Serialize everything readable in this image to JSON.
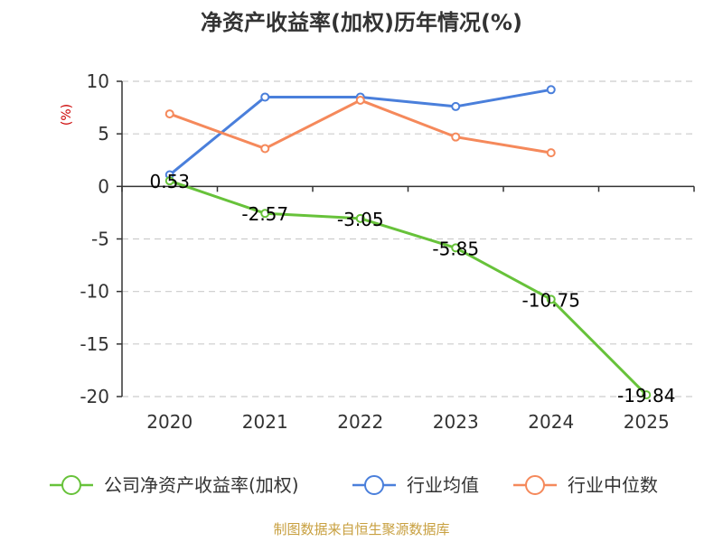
{
  "title": "净资产收益率(加权)历年情况(%)",
  "source": "制图数据来自恒生聚源数据库",
  "colors": {
    "company": "#67c23a",
    "industry_avg": "#4a7fdb",
    "industry_median": "#f5895b",
    "grid": "#cccccc",
    "axis": "#333333",
    "ylabel": "#cc0000",
    "source": "#c8a040"
  },
  "chart_data": {
    "type": "line",
    "title": "净资产收益率(加权)历年情况(%)",
    "xlabel": "",
    "ylabel": "(%)",
    "ylim": [
      -20,
      10
    ],
    "yticks": [
      10,
      5,
      0,
      -5,
      -10,
      -15,
      -20
    ],
    "categories": [
      "2020",
      "2021",
      "2022",
      "2023",
      "2024",
      "2025"
    ],
    "grid": true,
    "legend_position": "bottom",
    "series": [
      {
        "key": "company",
        "name": "公司净资产收益率(加权)",
        "values": [
          0.53,
          -2.57,
          -3.05,
          -5.85,
          -10.75,
          -19.84
        ],
        "labels": [
          "0.53",
          "-2.57",
          "-3.05",
          "-5.85",
          "-10.75",
          "-19.84"
        ]
      },
      {
        "key": "industry_avg",
        "name": "行业均值",
        "values": [
          1.1,
          8.5,
          8.5,
          7.6,
          9.2,
          null
        ]
      },
      {
        "key": "industry_median",
        "name": "行业中位数",
        "values": [
          6.9,
          3.6,
          8.2,
          4.7,
          3.2,
          null
        ]
      }
    ]
  }
}
